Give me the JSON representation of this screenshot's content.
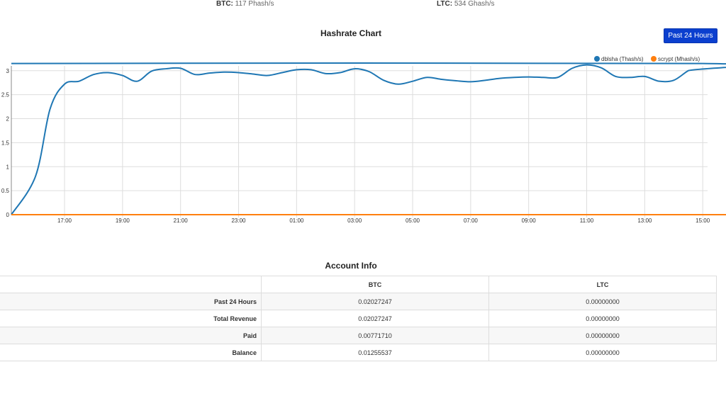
{
  "stats": [
    {
      "label": "BTC:",
      "value": "117 Phash/s"
    },
    {
      "label": "LTC:",
      "value": "534 Ghash/s"
    }
  ],
  "chart_section": {
    "title": "Hashrate Chart",
    "range_button": "Past 24 Hours"
  },
  "chart_data": {
    "type": "line",
    "title": "Hashrate Chart",
    "legend_position": "top-right",
    "grid": true,
    "x": [
      "15:10",
      "16:00",
      "16:30",
      "17:00",
      "17:30",
      "18:00",
      "18:30",
      "19:00",
      "19:30",
      "20:00",
      "20:30",
      "21:00",
      "21:30",
      "22:00",
      "22:30",
      "23:00",
      "23:30",
      "00:00",
      "00:30",
      "01:00",
      "01:30",
      "02:00",
      "02:30",
      "03:00",
      "03:30",
      "04:00",
      "04:30",
      "05:00",
      "05:30",
      "06:00",
      "06:30",
      "07:00",
      "07:30",
      "08:00",
      "08:30",
      "09:00",
      "09:30",
      "10:00",
      "10:30",
      "11:00",
      "11:30",
      "12:00",
      "12:30",
      "13:00",
      "13:30",
      "14:00",
      "14:30",
      "15:00",
      "15:10"
    ],
    "x_ticks": [
      "17:00",
      "19:00",
      "21:00",
      "23:00",
      "01:00",
      "03:00",
      "05:00",
      "07:00",
      "09:00",
      "11:00",
      "13:00",
      "15:00"
    ],
    "y_ticks": [
      "0",
      "0.5",
      "1",
      "1.5",
      "2",
      "2.5",
      "3"
    ],
    "ylim": [
      0,
      3.1
    ],
    "series": [
      {
        "name": "dblsha (Thash/s)",
        "color": "#1f77b4",
        "values": [
          0.0,
          0.8,
          2.2,
          2.72,
          2.78,
          2.92,
          2.96,
          2.9,
          2.78,
          2.99,
          3.04,
          3.05,
          2.92,
          2.95,
          2.97,
          2.96,
          2.93,
          2.9,
          2.96,
          3.02,
          3.02,
          2.94,
          2.96,
          3.04,
          2.98,
          2.8,
          2.72,
          2.78,
          2.86,
          2.82,
          2.79,
          2.77,
          2.8,
          2.84,
          2.86,
          2.87,
          2.86,
          2.86,
          3.05,
          3.12,
          3.06,
          2.88,
          2.86,
          2.88,
          2.78,
          2.8,
          3.0,
          3.15,
          3.15
        ]
      },
      {
        "name": "scrypt (Mhash/s)",
        "color": "#ff7f0e",
        "values": [
          0,
          0,
          0,
          0,
          0,
          0,
          0,
          0,
          0,
          0,
          0,
          0,
          0,
          0,
          0,
          0,
          0,
          0,
          0,
          0,
          0,
          0,
          0,
          0,
          0,
          0,
          0,
          0,
          0,
          0,
          0,
          0,
          0,
          0,
          0,
          0,
          0,
          0,
          0,
          0,
          0,
          0,
          0,
          0,
          0,
          0,
          0,
          0,
          0
        ]
      }
    ]
  },
  "account": {
    "title": "Account Info",
    "headers": [
      "",
      "BTC",
      "LTC"
    ],
    "rows": [
      {
        "label": "Past 24 Hours",
        "btc": "0.02027247",
        "ltc": "0.00000000"
      },
      {
        "label": "Total Revenue",
        "btc": "0.02027247",
        "ltc": "0.00000000"
      },
      {
        "label": "Paid",
        "btc": "0.00771710",
        "ltc": "0.00000000"
      },
      {
        "label": "Balance",
        "btc": "0.01255537",
        "ltc": "0.00000000"
      }
    ]
  }
}
